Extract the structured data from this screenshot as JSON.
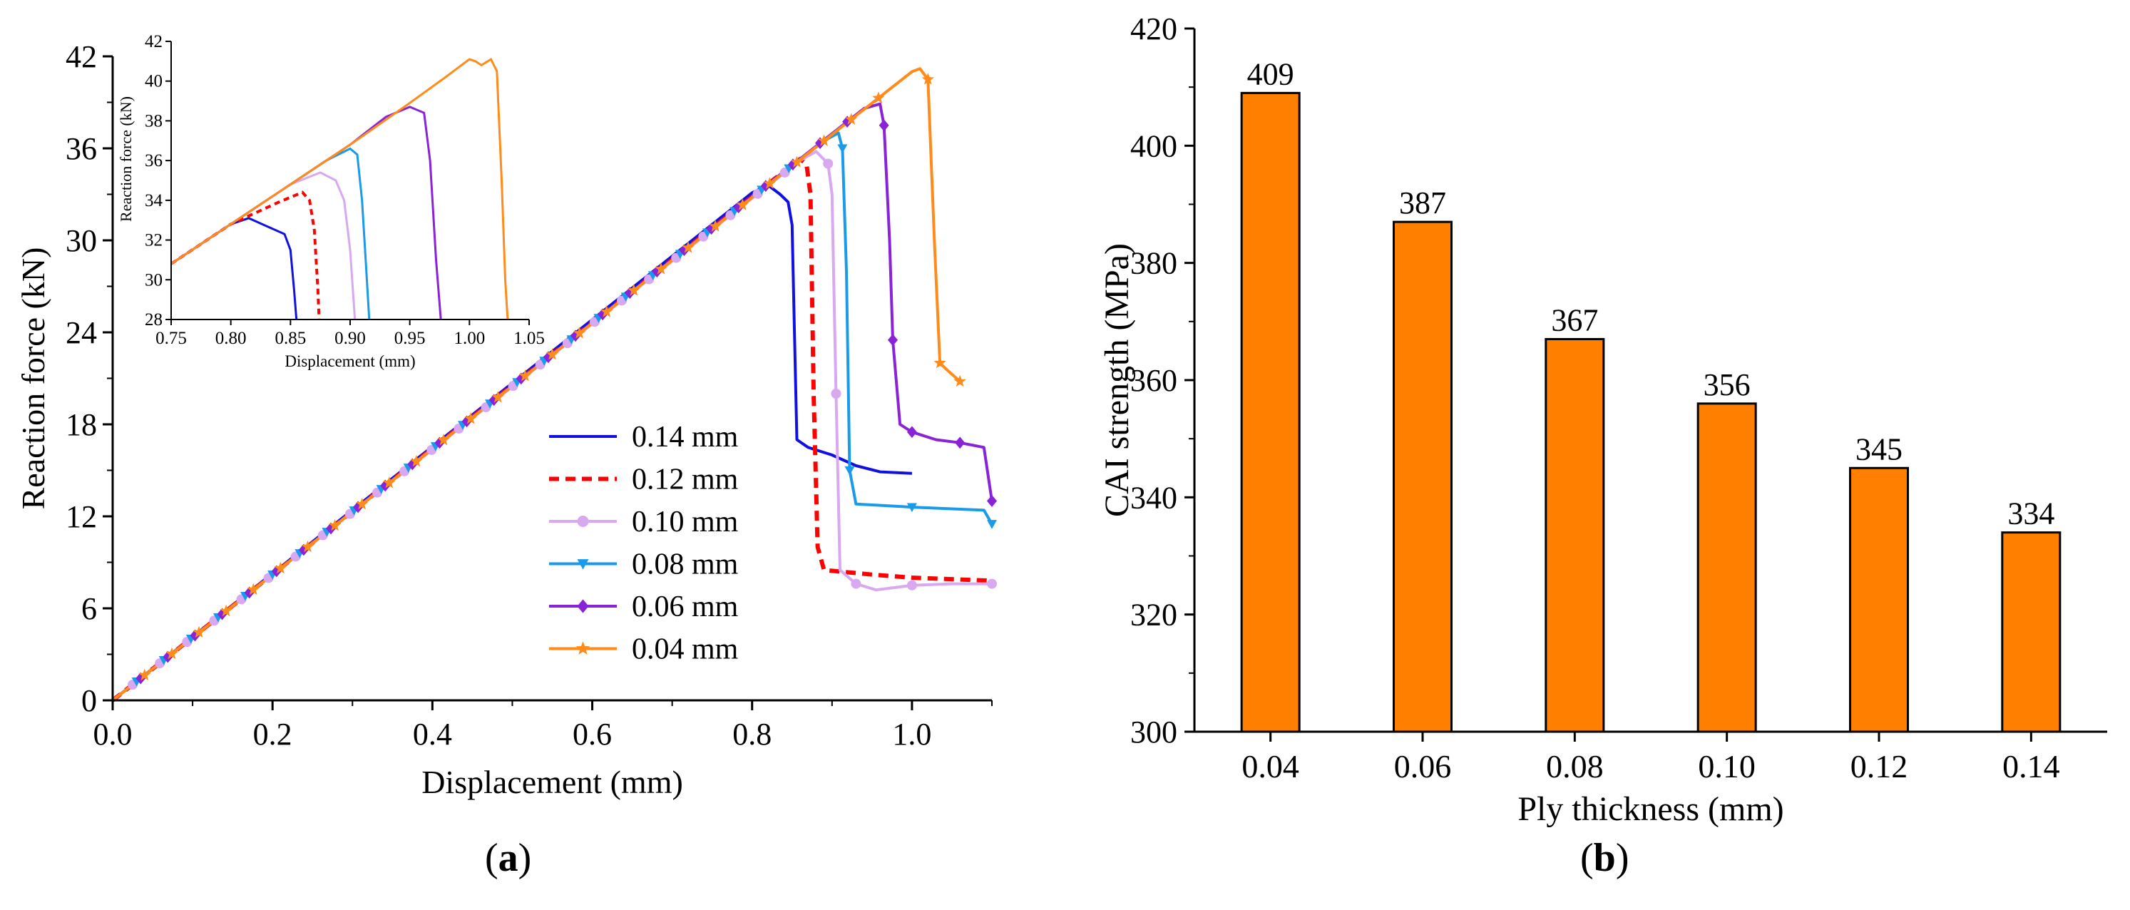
{
  "captions": {
    "open": "(",
    "close": ")",
    "a": "a",
    "b": "b"
  },
  "colors": {
    "bar_fill": "#ff8000",
    "axis": "#000000"
  },
  "chart_data": [
    {
      "id": "a",
      "type": "line",
      "xlabel": "Displacement (mm)",
      "ylabel": "Reaction force (kN)",
      "xlim": [
        0,
        1.1
      ],
      "ylim": [
        0,
        42
      ],
      "xticks": [
        0.0,
        0.2,
        0.4,
        0.6,
        0.8,
        1.0
      ],
      "xtick_labels": [
        "0.0",
        "0.2",
        "0.4",
        "0.6",
        "0.8",
        "1.0"
      ],
      "yticks": [
        0,
        6,
        12,
        18,
        24,
        30,
        36,
        42
      ],
      "ytick_labels": [
        "0",
        "6",
        "12",
        "18",
        "24",
        "30",
        "36",
        "42"
      ],
      "legend_position": "center-right",
      "series": [
        {
          "name": "0.14 mm",
          "color": "#1010e0",
          "dash": "solid",
          "marker": "none",
          "points": [
            [
              0,
              0
            ],
            [
              0.8,
              33.1
            ],
            [
              0.82,
              33.6
            ],
            [
              0.835,
              33.0
            ],
            [
              0.845,
              32.5
            ],
            [
              0.85,
              31.0
            ],
            [
              0.853,
              24.0
            ],
            [
              0.856,
              17.0
            ],
            [
              0.87,
              16.5
            ],
            [
              0.9,
              16.0
            ],
            [
              0.93,
              15.3
            ],
            [
              0.96,
              14.9
            ],
            [
              1.0,
              14.8
            ]
          ]
        },
        {
          "name": "0.12 mm",
          "color": "#ff0000",
          "dash": "dashed",
          "marker": "none",
          "points": [
            [
              0,
              0
            ],
            [
              0.84,
              34.5
            ],
            [
              0.86,
              35.3
            ],
            [
              0.868,
              35.0
            ],
            [
              0.873,
              33.0
            ],
            [
              0.877,
              20.0
            ],
            [
              0.882,
              10.0
            ],
            [
              0.89,
              8.5
            ],
            [
              0.95,
              8.2
            ],
            [
              1.0,
              8.0
            ],
            [
              1.1,
              7.8
            ]
          ]
        },
        {
          "name": "0.10 mm",
          "color": "#d8a8f0",
          "dash": "solid",
          "marker": "circle",
          "points": [
            [
              0,
              0
            ],
            [
              0.86,
              35.2
            ],
            [
              0.88,
              35.8
            ],
            [
              0.895,
              35.0
            ],
            [
              0.9,
              33.0
            ],
            [
              0.905,
              20.0
            ],
            [
              0.91,
              8.5
            ],
            [
              0.93,
              7.6
            ],
            [
              0.955,
              7.2
            ],
            [
              1.0,
              7.5
            ],
            [
              1.05,
              7.6
            ],
            [
              1.1,
              7.6
            ]
          ]
        },
        {
          "name": "0.08 mm",
          "color": "#1a9aea",
          "dash": "solid",
          "marker": "triangle-down",
          "points": [
            [
              0,
              0
            ],
            [
              0.89,
              36.5
            ],
            [
              0.908,
              37.0
            ],
            [
              0.913,
              36.0
            ],
            [
              0.918,
              28.0
            ],
            [
              0.922,
              15.0
            ],
            [
              0.93,
              12.8
            ],
            [
              1.0,
              12.6
            ],
            [
              1.09,
              12.4
            ],
            [
              1.1,
              11.5
            ]
          ]
        },
        {
          "name": "0.06 mm",
          "color": "#8a22d8",
          "dash": "solid",
          "marker": "diamond",
          "points": [
            [
              0,
              0
            ],
            [
              0.94,
              38.6
            ],
            [
              0.96,
              38.9
            ],
            [
              0.965,
              37.5
            ],
            [
              0.972,
              30.0
            ],
            [
              0.976,
              23.5
            ],
            [
              0.985,
              18.0
            ],
            [
              1.0,
              17.5
            ],
            [
              1.03,
              17.0
            ],
            [
              1.06,
              16.8
            ],
            [
              1.09,
              16.5
            ],
            [
              1.1,
              13.0
            ]
          ]
        },
        {
          "name": "0.04 mm",
          "color": "#ff8c1a",
          "dash": "solid",
          "marker": "star",
          "points": [
            [
              0,
              0
            ],
            [
              1.0,
              41.0
            ],
            [
              1.01,
              41.2
            ],
            [
              1.02,
              40.5
            ],
            [
              1.028,
              30.0
            ],
            [
              1.035,
              22.0
            ],
            [
              1.045,
              21.5
            ],
            [
              1.06,
              20.8
            ]
          ]
        }
      ],
      "inset": {
        "xlabel": "Displacement (mm)",
        "ylabel": "Reaction force (kN)",
        "xlim": [
          0.75,
          1.05
        ],
        "ylim": [
          28,
          42
        ],
        "xticks": [
          0.75,
          0.8,
          0.85,
          0.9,
          0.95,
          1.0,
          1.05
        ],
        "xtick_labels": [
          "0.75",
          "0.80",
          "0.85",
          "0.90",
          "0.95",
          "1.00",
          "1.05"
        ],
        "yticks": [
          28,
          30,
          32,
          34,
          36,
          38,
          40,
          42
        ],
        "ytick_labels": [
          "28",
          "30",
          "32",
          "34",
          "36",
          "38",
          "40",
          "42"
        ],
        "series": [
          {
            "name": "0.14 mm",
            "color": "#1010e0",
            "dash": "solid",
            "points": [
              [
                0.75,
                30.8
              ],
              [
                0.79,
                32.4
              ],
              [
                0.8,
                32.8
              ],
              [
                0.815,
                33.1
              ],
              [
                0.83,
                32.7
              ],
              [
                0.845,
                32.3
              ],
              [
                0.85,
                31.5
              ],
              [
                0.853,
                29.5
              ],
              [
                0.855,
                28
              ]
            ]
          },
          {
            "name": "0.12 mm",
            "color": "#ff0000",
            "dash": "dashed",
            "points": [
              [
                0.75,
                30.8
              ],
              [
                0.8,
                32.8
              ],
              [
                0.84,
                33.9
              ],
              [
                0.86,
                34.4
              ],
              [
                0.866,
                34.0
              ],
              [
                0.87,
                32.5
              ],
              [
                0.873,
                29.5
              ],
              [
                0.874,
                28
              ]
            ]
          },
          {
            "name": "0.10 mm",
            "color": "#d8a8f0",
            "dash": "solid",
            "points": [
              [
                0.75,
                30.8
              ],
              [
                0.8,
                32.8
              ],
              [
                0.85,
                34.8
              ],
              [
                0.875,
                35.4
              ],
              [
                0.888,
                35.0
              ],
              [
                0.895,
                34.0
              ],
              [
                0.9,
                31.5
              ],
              [
                0.904,
                28
              ]
            ]
          },
          {
            "name": "0.08 mm",
            "color": "#1a9aea",
            "dash": "solid",
            "points": [
              [
                0.75,
                30.8
              ],
              [
                0.8,
                32.8
              ],
              [
                0.85,
                34.8
              ],
              [
                0.88,
                36.0
              ],
              [
                0.9,
                36.6
              ],
              [
                0.906,
                36.3
              ],
              [
                0.91,
                34.0
              ],
              [
                0.913,
                31.0
              ],
              [
                0.916,
                28
              ]
            ]
          },
          {
            "name": "0.06 mm",
            "color": "#8a22d8",
            "dash": "solid",
            "points": [
              [
                0.75,
                30.8
              ],
              [
                0.8,
                32.8
              ],
              [
                0.85,
                34.8
              ],
              [
                0.9,
                36.8
              ],
              [
                0.93,
                38.2
              ],
              [
                0.95,
                38.7
              ],
              [
                0.962,
                38.4
              ],
              [
                0.967,
                36.0
              ],
              [
                0.972,
                31.0
              ],
              [
                0.976,
                28
              ]
            ]
          },
          {
            "name": "0.04 mm",
            "color": "#ff8c1a",
            "dash": "solid",
            "points": [
              [
                0.75,
                30.8
              ],
              [
                0.8,
                32.8
              ],
              [
                0.85,
                34.8
              ],
              [
                0.9,
                36.8
              ],
              [
                0.95,
                38.9
              ],
              [
                0.98,
                40.2
              ],
              [
                1.0,
                41.1
              ],
              [
                1.005,
                41.0
              ],
              [
                1.01,
                40.8
              ],
              [
                1.018,
                41.1
              ],
              [
                1.023,
                40.5
              ],
              [
                1.027,
                35.0
              ],
              [
                1.03,
                30.0
              ],
              [
                1.032,
                28
              ]
            ]
          }
        ]
      }
    },
    {
      "id": "b",
      "type": "bar",
      "xlabel": "Ply thickness (mm)",
      "ylabel": "CAI strength (MPa)",
      "categories": [
        "0.04",
        "0.06",
        "0.08",
        "0.10",
        "0.12",
        "0.14"
      ],
      "values": [
        409,
        387,
        367,
        356,
        345,
        334
      ],
      "value_labels": [
        "409",
        "387",
        "367",
        "356",
        "345",
        "334"
      ],
      "ylim": [
        300,
        420
      ],
      "yticks": [
        300,
        320,
        340,
        360,
        380,
        400,
        420
      ],
      "ytick_labels": [
        "300",
        "320",
        "340",
        "360",
        "380",
        "400",
        "420"
      ]
    }
  ]
}
